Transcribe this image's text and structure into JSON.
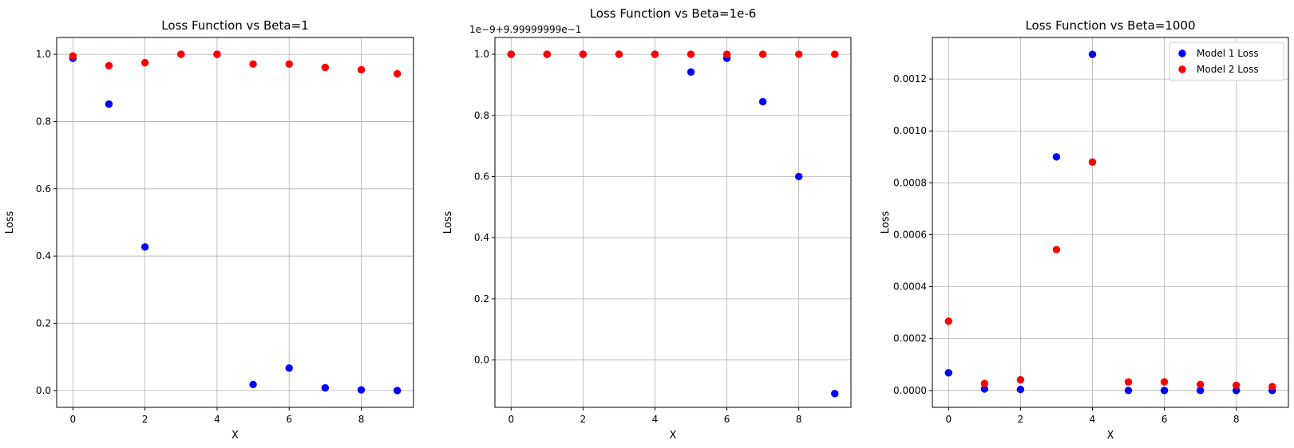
{
  "chart_data": [
    {
      "type": "scatter",
      "title": "Loss Function vs Beta=1",
      "xlabel": "X",
      "ylabel": "Loss",
      "xlim": [
        -0.45,
        9.45
      ],
      "ylim": [
        -0.05,
        1.05
      ],
      "xticks": [
        0,
        2,
        4,
        6,
        8
      ],
      "xtick_labels": [
        "0",
        "2",
        "4",
        "6",
        "8"
      ],
      "yticks": [
        0.0,
        0.2,
        0.4,
        0.6,
        0.8,
        1.0
      ],
      "ytick_labels": [
        "0.0",
        "0.2",
        "0.4",
        "0.6",
        "0.8",
        "1.0"
      ],
      "offset_text": "",
      "grid": true,
      "legend": false,
      "series": [
        {
          "color": "#0000ff",
          "x": [
            0,
            1,
            2,
            3,
            4,
            5,
            6,
            7,
            8,
            9
          ],
          "y": [
            0.988,
            0.852,
            0.427,
            1.0,
            1.0,
            0.018,
            0.067,
            0.008,
            0.002,
            0.0
          ]
        },
        {
          "color": "#ff0000",
          "x": [
            0,
            1,
            2,
            3,
            4,
            5,
            6,
            7,
            8,
            9
          ],
          "y": [
            0.995,
            0.966,
            0.975,
            1.0,
            1.0,
            0.971,
            0.971,
            0.961,
            0.954,
            0.942
          ]
        }
      ]
    },
    {
      "type": "scatter",
      "title": "Loss Function vs Beta=1e-6",
      "xlabel": "X",
      "ylabel": "Loss",
      "xlim": [
        -0.45,
        9.45
      ],
      "ylim": [
        -0.155,
        1.055
      ],
      "xticks": [
        0,
        2,
        4,
        6,
        8
      ],
      "xtick_labels": [
        "0",
        "2",
        "4",
        "6",
        "8"
      ],
      "yticks": [
        0.0,
        0.2,
        0.4,
        0.6,
        0.8,
        1.0
      ],
      "ytick_labels": [
        "0.0",
        "0.2",
        "0.4",
        "0.6",
        "0.8",
        "1.0"
      ],
      "offset_text": "1e−9+9.99999999e−1",
      "grid": true,
      "legend": false,
      "series": [
        {
          "color": "#0000ff",
          "x": [
            0,
            1,
            2,
            3,
            4,
            5,
            6,
            7,
            8,
            9
          ],
          "y": [
            1.0,
            1.0,
            1.0,
            1.0,
            1.0,
            0.942,
            0.987,
            0.845,
            0.6,
            -0.11
          ]
        },
        {
          "color": "#ff0000",
          "x": [
            0,
            1,
            2,
            3,
            4,
            5,
            6,
            7,
            8,
            9
          ],
          "y": [
            1.0,
            1.0,
            1.0,
            1.0,
            1.0,
            1.0,
            1.0,
            1.0,
            1.0,
            1.0
          ]
        }
      ]
    },
    {
      "type": "scatter",
      "title": "Loss Function vs Beta=1000",
      "xlabel": "X",
      "ylabel": "Loss",
      "xlim": [
        -0.45,
        9.45
      ],
      "ylim": [
        -6.5e-05,
        0.00136
      ],
      "xticks": [
        0,
        2,
        4,
        6,
        8
      ],
      "xtick_labels": [
        "0",
        "2",
        "4",
        "6",
        "8"
      ],
      "yticks": [
        0.0,
        0.0002,
        0.0004,
        0.0006,
        0.0008,
        0.001,
        0.0012
      ],
      "ytick_labels": [
        "0.0000",
        "0.0002",
        "0.0004",
        "0.0006",
        "0.0008",
        "0.0010",
        "0.0012"
      ],
      "offset_text": "",
      "grid": true,
      "legend": true,
      "legend_position": "top-right",
      "series": [
        {
          "name": "Model 1 Loss",
          "color": "#0000ff",
          "x": [
            0,
            1,
            2,
            3,
            4,
            5,
            6,
            7,
            8,
            9
          ],
          "y": [
            6.8e-05,
            6e-06,
            4e-06,
            0.0009,
            0.001295,
            0.0,
            0.0,
            0.0,
            0.0,
            0.0
          ]
        },
        {
          "name": "Model 2 Loss",
          "color": "#ff0000",
          "x": [
            0,
            1,
            2,
            3,
            4,
            5,
            6,
            7,
            8,
            9
          ],
          "y": [
            0.000267,
            2.7e-05,
            4.1e-05,
            0.000543,
            0.00088,
            3.3e-05,
            3.3e-05,
            2.3e-05,
            2e-05,
            1.5e-05
          ]
        }
      ]
    }
  ]
}
